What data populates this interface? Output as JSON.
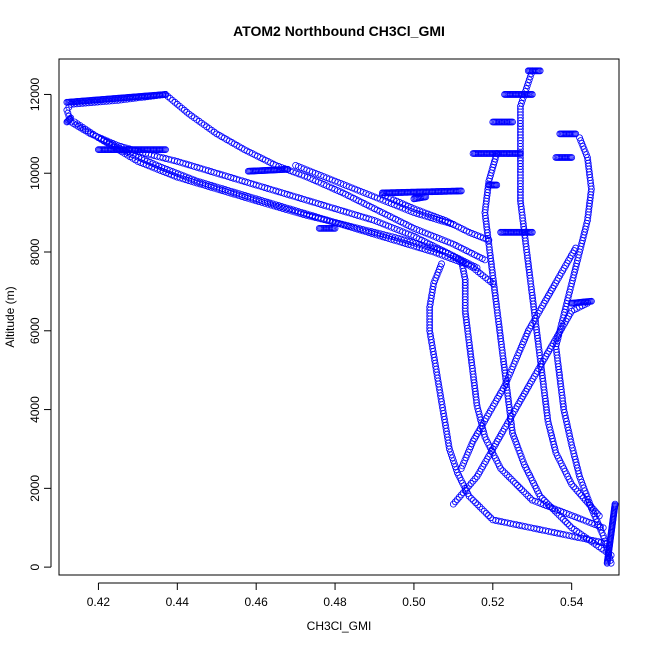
{
  "chart_data": {
    "type": "scatter",
    "title": "ATOM2 Northbound CH3Cl_GMI",
    "xlabel": "CH3Cl_GMI",
    "ylabel": "Altitude (m)",
    "xlim": [
      0.41,
      0.552
    ],
    "ylim": [
      -200,
      12900
    ],
    "xticks": [
      "0.42",
      "0.44",
      "0.46",
      "0.48",
      "0.50",
      "0.52",
      "0.54"
    ],
    "xtick_values": [
      0.42,
      0.44,
      0.46,
      0.48,
      0.5,
      0.52,
      0.54
    ],
    "yticks": [
      "0",
      "2000",
      "4000",
      "6000",
      "8000",
      "10000",
      "12000"
    ],
    "ytick_values": [
      0,
      2000,
      4000,
      6000,
      8000,
      10000,
      12000
    ],
    "marker": "open-circle",
    "color": "#0000ff",
    "grid": false,
    "series": [
      {
        "values": [
          [
            0.55,
            100
          ],
          [
            0.548,
            800
          ],
          [
            0.545,
            1500
          ],
          [
            0.542,
            2300
          ],
          [
            0.54,
            3100
          ],
          [
            0.538,
            4000
          ],
          [
            0.537,
            4800
          ],
          [
            0.536,
            5600
          ],
          [
            0.538,
            6400
          ],
          [
            0.54,
            7200
          ],
          [
            0.542,
            8000
          ],
          [
            0.544,
            8800
          ],
          [
            0.545,
            9600
          ],
          [
            0.544,
            10400
          ],
          [
            0.542,
            10900
          ]
        ]
      },
      {
        "values": [
          [
            0.55,
            300
          ],
          [
            0.54,
            1000
          ],
          [
            0.532,
            1800
          ],
          [
            0.528,
            2600
          ],
          [
            0.525,
            3400
          ],
          [
            0.524,
            4200
          ],
          [
            0.523,
            5000
          ],
          [
            0.522,
            5800
          ],
          [
            0.521,
            6600
          ],
          [
            0.52,
            7400
          ],
          [
            0.519,
            8200
          ],
          [
            0.518,
            9000
          ],
          [
            0.519,
            9800
          ],
          [
            0.521,
            10500
          ]
        ]
      },
      {
        "values": [
          [
            0.549,
            600
          ],
          [
            0.52,
            1200
          ],
          [
            0.514,
            1800
          ],
          [
            0.511,
            2400
          ],
          [
            0.509,
            3000
          ],
          [
            0.508,
            3600
          ],
          [
            0.507,
            4200
          ],
          [
            0.506,
            4800
          ],
          [
            0.505,
            5400
          ],
          [
            0.504,
            6000
          ],
          [
            0.504,
            6600
          ],
          [
            0.505,
            7200
          ],
          [
            0.507,
            7700
          ]
        ]
      },
      {
        "values": [
          [
            0.548,
            1000
          ],
          [
            0.53,
            1700
          ],
          [
            0.522,
            2500
          ],
          [
            0.518,
            3300
          ],
          [
            0.516,
            4100
          ],
          [
            0.515,
            4900
          ],
          [
            0.514,
            5700
          ],
          [
            0.513,
            6500
          ],
          [
            0.513,
            7300
          ],
          [
            0.512,
            7800
          ]
        ]
      },
      {
        "values": [
          [
            0.547,
            1300
          ],
          [
            0.54,
            2100
          ],
          [
            0.536,
            2900
          ],
          [
            0.534,
            3700
          ],
          [
            0.533,
            4500
          ],
          [
            0.532,
            5300
          ],
          [
            0.531,
            6100
          ],
          [
            0.53,
            6900
          ],
          [
            0.529,
            7700
          ],
          [
            0.528,
            8500
          ],
          [
            0.527,
            9300
          ],
          [
            0.527,
            10100
          ],
          [
            0.527,
            10900
          ],
          [
            0.527,
            11700
          ],
          [
            0.53,
            12600
          ]
        ]
      },
      {
        "values": [
          [
            0.51,
            1600
          ],
          [
            0.516,
            2300
          ],
          [
            0.52,
            3000
          ],
          [
            0.524,
            3700
          ],
          [
            0.528,
            4400
          ],
          [
            0.532,
            5100
          ],
          [
            0.536,
            5800
          ],
          [
            0.54,
            6500
          ],
          [
            0.544,
            6700
          ]
        ]
      },
      {
        "values": [
          [
            0.512,
            2500
          ],
          [
            0.515,
            3200
          ],
          [
            0.519,
            3900
          ],
          [
            0.523,
            4600
          ],
          [
            0.526,
            5300
          ],
          [
            0.529,
            6000
          ],
          [
            0.533,
            6700
          ],
          [
            0.537,
            7400
          ],
          [
            0.541,
            8100
          ]
        ]
      },
      {
        "values": [
          [
            0.437,
            12000
          ],
          [
            0.425,
            11850
          ],
          [
            0.413,
            11750
          ],
          [
            0.412,
            11600
          ],
          [
            0.413,
            11300
          ],
          [
            0.418,
            11000
          ],
          [
            0.425,
            10700
          ],
          [
            0.432,
            10500
          ],
          [
            0.44,
            10300
          ],
          [
            0.45,
            10000
          ],
          [
            0.46,
            9700
          ],
          [
            0.47,
            9400
          ],
          [
            0.48,
            9100
          ],
          [
            0.49,
            8800
          ],
          [
            0.5,
            8400
          ],
          [
            0.508,
            8000
          ],
          [
            0.515,
            7600
          ],
          [
            0.52,
            7200
          ]
        ]
      },
      {
        "values": [
          [
            0.437,
            12000
          ],
          [
            0.443,
            11500
          ],
          [
            0.45,
            11000
          ],
          [
            0.457,
            10600
          ],
          [
            0.465,
            10200
          ],
          [
            0.473,
            9900
          ],
          [
            0.482,
            9500
          ],
          [
            0.49,
            9100
          ],
          [
            0.5,
            8600
          ],
          [
            0.51,
            8200
          ],
          [
            0.518,
            7800
          ]
        ]
      },
      {
        "values": [
          [
            0.414,
            11300
          ],
          [
            0.42,
            10900
          ],
          [
            0.428,
            10500
          ],
          [
            0.436,
            10150
          ],
          [
            0.445,
            9800
          ],
          [
            0.455,
            9500
          ],
          [
            0.465,
            9200
          ],
          [
            0.475,
            8900
          ],
          [
            0.485,
            8600
          ],
          [
            0.495,
            8300
          ],
          [
            0.505,
            8000
          ],
          [
            0.513,
            7700
          ]
        ]
      },
      {
        "values": [
          [
            0.42,
            10900
          ],
          [
            0.43,
            10300
          ],
          [
            0.44,
            9900
          ],
          [
            0.45,
            9600
          ],
          [
            0.46,
            9300
          ],
          [
            0.472,
            8950
          ],
          [
            0.484,
            8650
          ],
          [
            0.496,
            8350
          ],
          [
            0.508,
            8000
          ],
          [
            0.516,
            7600
          ]
        ]
      },
      {
        "values": [
          [
            0.492,
            9450
          ],
          [
            0.5,
            9100
          ],
          [
            0.508,
            8800
          ],
          [
            0.514,
            8500
          ],
          [
            0.519,
            8300
          ]
        ]
      },
      {
        "values": [
          [
            0.47,
            10200
          ],
          [
            0.48,
            9800
          ],
          [
            0.49,
            9400
          ],
          [
            0.5,
            9000
          ],
          [
            0.51,
            8700
          ]
        ]
      }
    ],
    "segments": [
      {
        "x": [
          0.412,
          0.437
        ],
        "y": [
          11800,
          12000
        ]
      },
      {
        "x": [
          0.412,
          0.413
        ],
        "y": [
          11300,
          11400
        ]
      },
      {
        "x": [
          0.42,
          0.437
        ],
        "y": [
          10600,
          10600
        ]
      },
      {
        "x": [
          0.458,
          0.468
        ],
        "y": [
          10050,
          10100
        ]
      },
      {
        "x": [
          0.476,
          0.48
        ],
        "y": [
          8600,
          8600
        ]
      },
      {
        "x": [
          0.492,
          0.512
        ],
        "y": [
          9500,
          9550
        ]
      },
      {
        "x": [
          0.5,
          0.503
        ],
        "y": [
          9350,
          9400
        ]
      },
      {
        "x": [
          0.515,
          0.527
        ],
        "y": [
          10500,
          10500
        ]
      },
      {
        "x": [
          0.523,
          0.53
        ],
        "y": [
          12000,
          12000
        ]
      },
      {
        "x": [
          0.529,
          0.532
        ],
        "y": [
          12600,
          12600
        ]
      },
      {
        "x": [
          0.52,
          0.525
        ],
        "y": [
          11300,
          11300
        ]
      },
      {
        "x": [
          0.537,
          0.541
        ],
        "y": [
          11000,
          11000
        ]
      },
      {
        "x": [
          0.536,
          0.54
        ],
        "y": [
          10400,
          10400
        ]
      },
      {
        "x": [
          0.519,
          0.521
        ],
        "y": [
          9700,
          9700
        ]
      },
      {
        "x": [
          0.54,
          0.545
        ],
        "y": [
          6700,
          6750
        ]
      },
      {
        "x": [
          0.522,
          0.53
        ],
        "y": [
          8500,
          8500
        ]
      },
      {
        "x": [
          0.549,
          0.551
        ],
        "y": [
          100,
          1600
        ]
      }
    ]
  }
}
